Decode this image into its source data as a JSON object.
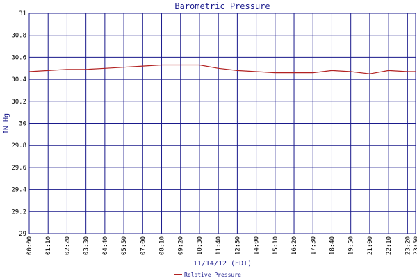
{
  "chart_data": {
    "type": "line",
    "title": "Barometric Pressure",
    "xlabel": "11/14/12 (EDT)",
    "ylabel": "IN Hg",
    "ylim": [
      29,
      31
    ],
    "y_ticks": [
      "29",
      "29.2",
      "29.4",
      "29.6",
      "29.8",
      "30",
      "30.2",
      "30.4",
      "30.6",
      "30.8",
      "31"
    ],
    "x_ticks": [
      "00:00",
      "01:10",
      "02:20",
      "03:30",
      "04:40",
      "05:50",
      "07:00",
      "08:10",
      "09:20",
      "10:30",
      "11:40",
      "12:50",
      "14:00",
      "15:10",
      "16:20",
      "17:30",
      "18:40",
      "19:50",
      "21:00",
      "22:10",
      "23:20",
      "23:50"
    ],
    "grid": true,
    "legend_position": "bottom-center",
    "series": [
      {
        "name": "Relative Pressure",
        "color": "#b22222",
        "x": [
          "00:00",
          "01:10",
          "02:20",
          "03:30",
          "04:40",
          "05:50",
          "07:00",
          "08:10",
          "09:20",
          "10:30",
          "11:40",
          "12:50",
          "14:00",
          "15:10",
          "16:20",
          "17:30",
          "18:40",
          "19:50",
          "21:00",
          "22:10",
          "23:20",
          "23:50"
        ],
        "values": [
          30.47,
          30.48,
          30.49,
          30.49,
          30.5,
          30.51,
          30.52,
          30.53,
          30.53,
          30.53,
          30.5,
          30.48,
          30.47,
          30.46,
          30.46,
          30.46,
          30.48,
          30.47,
          30.45,
          30.48,
          30.47,
          30.47
        ]
      }
    ]
  }
}
